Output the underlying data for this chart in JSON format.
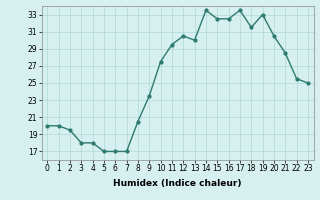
{
  "x": [
    0,
    1,
    2,
    3,
    4,
    5,
    6,
    7,
    8,
    9,
    10,
    11,
    12,
    13,
    14,
    15,
    16,
    17,
    18,
    19,
    20,
    21,
    22,
    23
  ],
  "y": [
    20,
    20,
    19.5,
    18,
    18,
    17,
    17,
    17,
    20.5,
    23.5,
    27.5,
    29.5,
    30.5,
    30,
    33.5,
    32.5,
    32.5,
    33.5,
    31.5,
    33,
    30.5,
    28.5,
    25.5,
    25
  ],
  "line_color": "#2d7a6e",
  "marker": "o",
  "marker_size": 2,
  "bg_color": "#d6f0ef",
  "grid_color": "#b0d8d4",
  "xlabel": "Humidex (Indice chaleur)",
  "xlim": [
    -0.5,
    23.5
  ],
  "ylim": [
    16,
    34
  ],
  "yticks": [
    17,
    19,
    21,
    23,
    25,
    27,
    29,
    31,
    33
  ],
  "xtick_labels": [
    "0",
    "1",
    "2",
    "3",
    "4",
    "5",
    "6",
    "7",
    "8",
    "9",
    "10",
    "11",
    "12",
    "13",
    "14",
    "15",
    "16",
    "17",
    "18",
    "19",
    "20",
    "21",
    "22",
    "23"
  ],
  "tick_fontsize": 5.5,
  "xlabel_fontsize": 6.5,
  "line_width": 1.0
}
